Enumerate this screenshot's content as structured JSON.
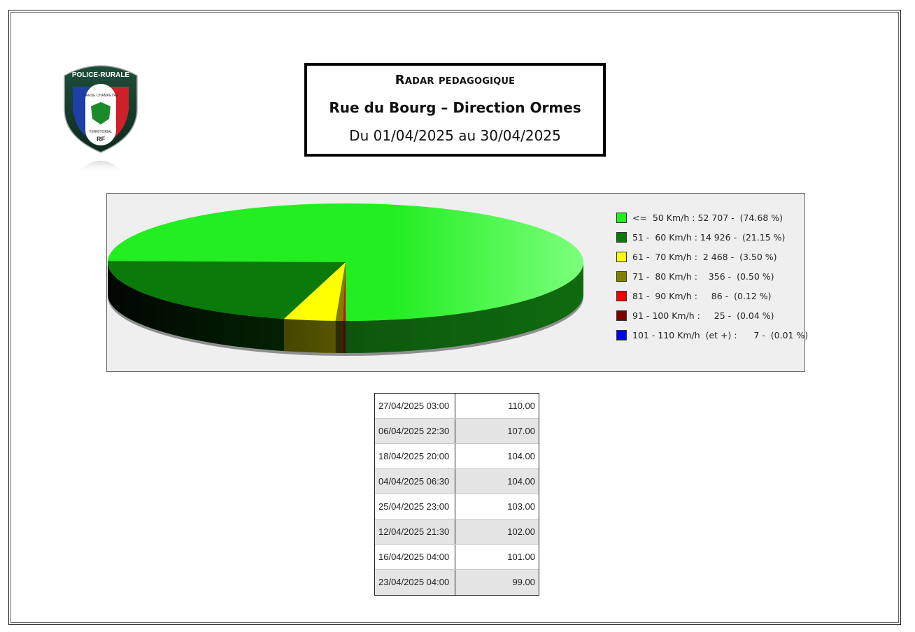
{
  "header": {
    "title": "Radar pedagogique",
    "location": "Rue du Bourg – Direction Ormes",
    "period": "Du 01/04/2025 au 30/04/2025"
  },
  "logo": {
    "top_text": "POLICE-RURALE",
    "middle_text": "GARDE CHAMPETRE",
    "bottom_text": "TERRITORIAL",
    "initials": "RF"
  },
  "chart_data": {
    "type": "pie",
    "categories": [
      "<=  50 Km/h : 52 707 -  (74.68 %)",
      "51 -  60 Km/h : 14 926 -  (21.15 %)",
      "61 -  70 Km/h :  2 468 -  (3.50 %)",
      "71 -  80 Km/h :    356 -  (0.50 %)",
      "81 -  90 Km/h :     86 -  (0.12 %)",
      "91 - 100 Km/h :     25 -  (0.04 %)",
      "101 - 110 Km/h  (et +) :      7 -  (0.01 %)"
    ],
    "values": [
      52707,
      14926,
      2468,
      356,
      86,
      25,
      7
    ],
    "percentages": [
      74.68,
      21.15,
      3.5,
      0.5,
      0.12,
      0.04,
      0.01
    ],
    "colors": [
      "#22ee22",
      "#0a7a0a",
      "#ffff00",
      "#808000",
      "#ff0000",
      "#800000",
      "#0000ff"
    ],
    "legend_position": "right",
    "style": "3d"
  },
  "top_speeds": {
    "rows": [
      {
        "date": "27/04/2025 03:00",
        "speed": "110.00"
      },
      {
        "date": "06/04/2025 22:30",
        "speed": "107.00"
      },
      {
        "date": "18/04/2025 20:00",
        "speed": "104.00"
      },
      {
        "date": "04/04/2025 06:30",
        "speed": "104.00"
      },
      {
        "date": "25/04/2025 23:00",
        "speed": "103.00"
      },
      {
        "date": "12/04/2025 21:30",
        "speed": "102.00"
      },
      {
        "date": "16/04/2025 04:00",
        "speed": "101.00"
      },
      {
        "date": "23/04/2025 04:00",
        "speed": "99.00"
      }
    ]
  }
}
